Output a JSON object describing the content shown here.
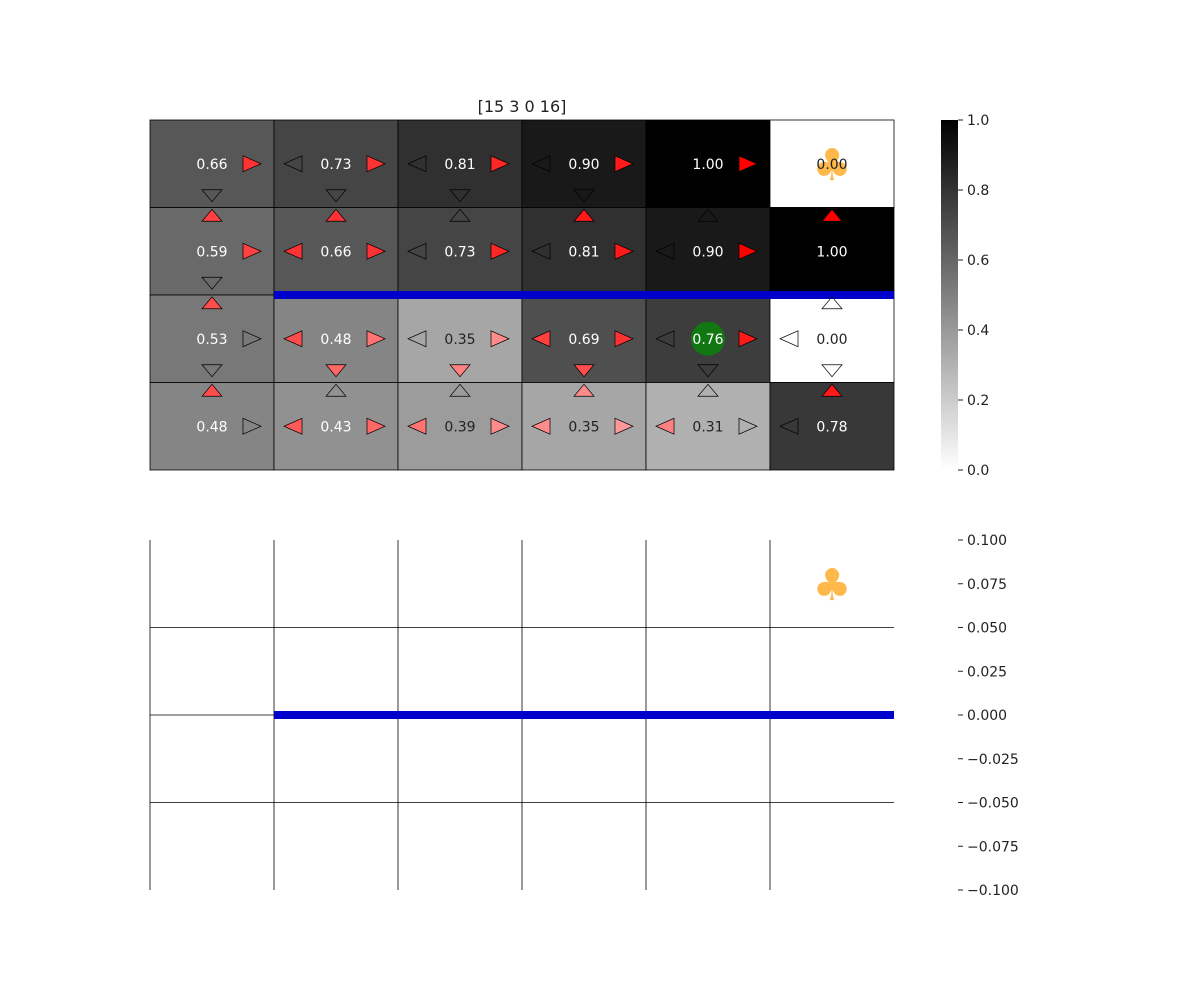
{
  "chart_data": [
    {
      "type": "heatmap",
      "title": "[15 3 0 16]",
      "rows": 4,
      "cols": 6,
      "values": [
        [
          0.66,
          0.73,
          0.81,
          0.9,
          1.0,
          0.0
        ],
        [
          0.59,
          0.66,
          0.73,
          0.81,
          0.9,
          1.0
        ],
        [
          0.53,
          0.48,
          0.35,
          0.69,
          0.76,
          0.0
        ],
        [
          0.48,
          0.43,
          0.39,
          0.35,
          0.31,
          0.78
        ]
      ],
      "value_labels": [
        [
          "0.66",
          "0.73",
          "0.81",
          "0.90",
          "1.00",
          "0.00"
        ],
        [
          "0.59",
          "0.66",
          "0.73",
          "0.81",
          "0.90",
          "1.00"
        ],
        [
          "0.53",
          "0.48",
          "0.35",
          "0.69",
          "0.76",
          "0.00"
        ],
        [
          "0.48",
          "0.43",
          "0.39",
          "0.35",
          "0.31",
          "0.78"
        ]
      ],
      "arrows": [
        [
          {
            "up": null,
            "down": 0,
            "left": null,
            "right": 0.8
          },
          {
            "up": null,
            "down": 0,
            "left": 0,
            "right": 0.8
          },
          {
            "up": null,
            "down": 0,
            "left": 0,
            "right": 0.85
          },
          {
            "up": null,
            "down": 0,
            "left": 0,
            "right": 0.9
          },
          {
            "up": null,
            "down": null,
            "left": null,
            "right": 1.0
          },
          null
        ],
        [
          {
            "up": 0.75,
            "down": 0,
            "left": null,
            "right": 0.75
          },
          {
            "up": 0.8,
            "down": null,
            "left": 0.8,
            "right": 0.8
          },
          {
            "up": 0,
            "down": null,
            "left": 0,
            "right": 0.85
          },
          {
            "up": 0.9,
            "down": null,
            "left": 0,
            "right": 0.9
          },
          {
            "up": 0,
            "down": null,
            "left": 0,
            "right": 1.0
          },
          {
            "up": 1.0,
            "down": null,
            "left": null,
            "right": null
          }
        ],
        [
          {
            "up": 0.7,
            "down": 0,
            "left": null,
            "right": 0
          },
          {
            "up": null,
            "down": 0.6,
            "left": 0.7,
            "right": 0.55
          },
          {
            "up": null,
            "down": 0.5,
            "left": 0,
            "right": 0.45
          },
          {
            "up": null,
            "down": 0.7,
            "left": 0.75,
            "right": 0.8
          },
          {
            "up": null,
            "down": 0,
            "left": 0,
            "right": 0.9
          },
          {
            "up": 0,
            "down": 0,
            "left": 0,
            "right": null
          }
        ],
        [
          {
            "up": 0.7,
            "down": null,
            "left": null,
            "right": 0
          },
          {
            "up": 0,
            "down": null,
            "left": 0.65,
            "right": 0.6
          },
          {
            "up": 0,
            "down": null,
            "left": 0.55,
            "right": 0.45
          },
          {
            "up": 0.45,
            "down": null,
            "left": 0.45,
            "right": 0.4
          },
          {
            "up": 0,
            "down": null,
            "left": 0.5,
            "right": 0
          },
          {
            "up": 0.9,
            "down": null,
            "left": 0,
            "right": null
          }
        ]
      ],
      "agent": {
        "row": 2,
        "col": 4,
        "color": "#117711"
      },
      "goal": {
        "row": 0,
        "col": 5,
        "symbol": "♣",
        "color": "#ffb84a"
      },
      "walls": [
        {
          "between_rows": [
            1,
            2
          ],
          "from_col": 1,
          "to_col": 6,
          "color": "#0000cc"
        }
      ],
      "colorbar": {
        "range": [
          0.0,
          1.0
        ],
        "ticks": [
          "0.0",
          "0.2",
          "0.4",
          "0.6",
          "0.8",
          "1.0"
        ]
      },
      "colormap": "gray_r",
      "arrow_color": "#ff0000"
    },
    {
      "type": "heatmap",
      "rows": 4,
      "cols": 6,
      "goal": {
        "row": 0,
        "col": 5,
        "symbol": "♣",
        "color": "#ffb84a"
      },
      "walls": [
        {
          "between_rows": [
            1,
            2
          ],
          "from_col": 1,
          "to_col": 6,
          "color": "#0000cc"
        }
      ],
      "colorbar": {
        "range": [
          -0.1,
          0.1
        ],
        "ticks": [
          "0.100",
          "0.075",
          "0.050",
          "0.025",
          "0.000",
          "−0.025",
          "−0.050",
          "−0.075",
          "−0.100"
        ]
      }
    }
  ]
}
